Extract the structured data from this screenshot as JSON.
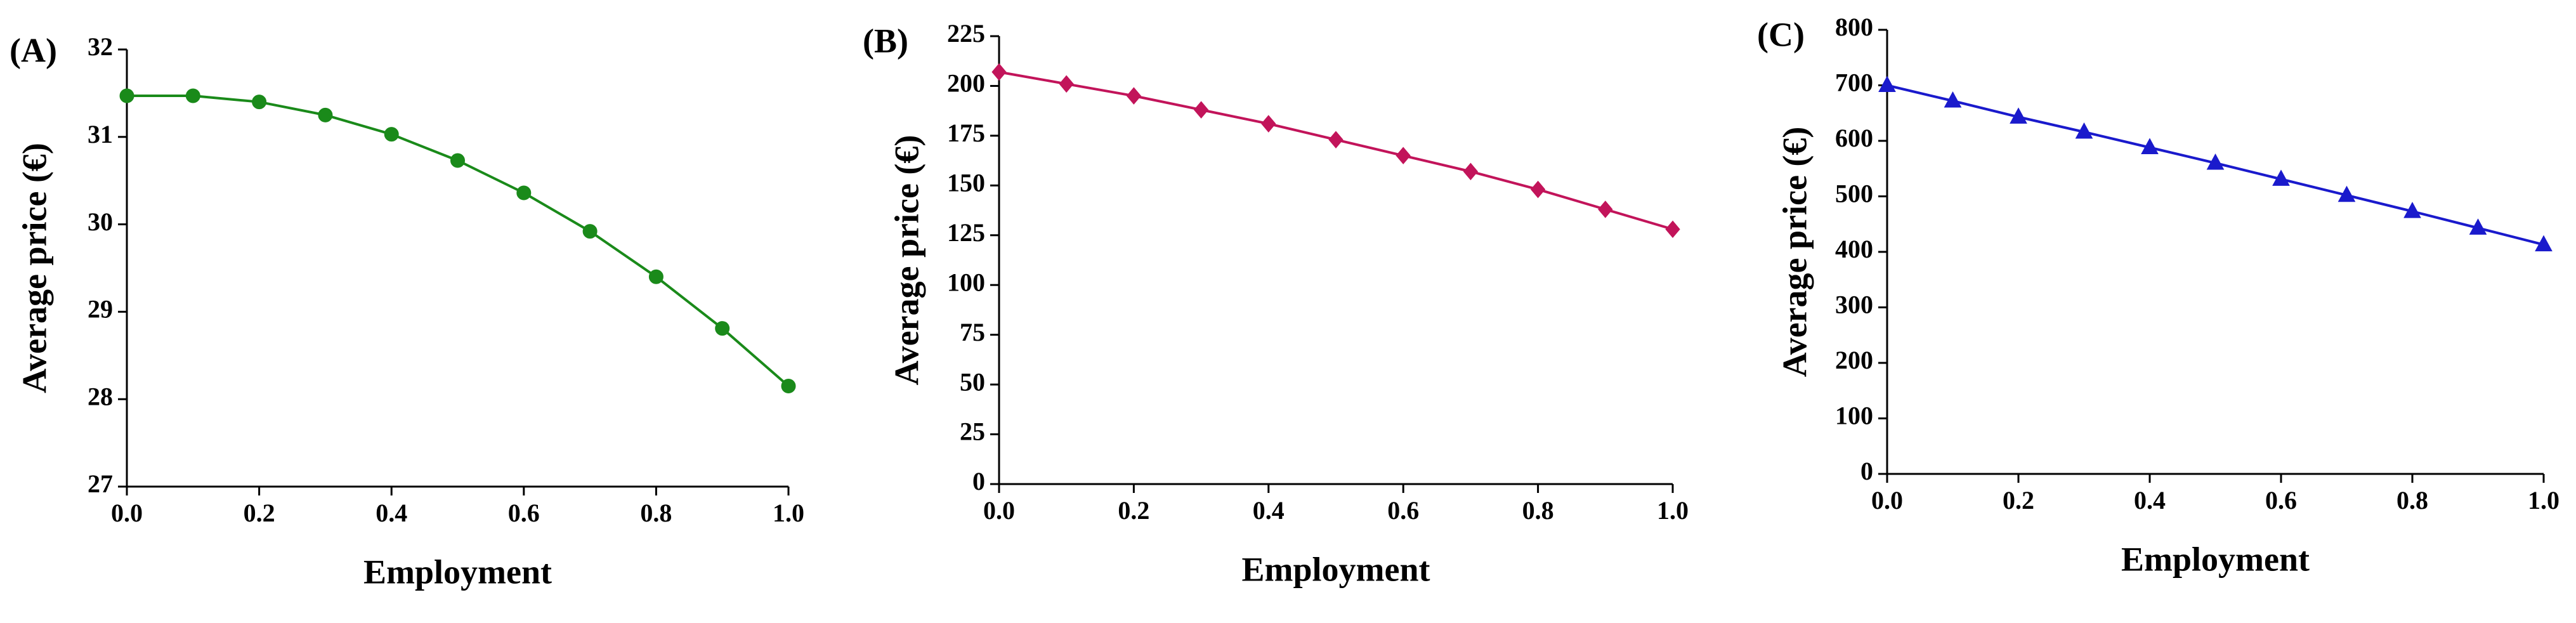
{
  "chart_data": [
    {
      "type": "line",
      "title": "(A)",
      "xlabel": "Employment",
      "ylabel": "Average price (€)",
      "x": [
        0,
        0.1,
        0.2,
        0.3,
        0.4,
        0.5,
        0.6,
        0.7,
        0.8,
        0.9,
        1
      ],
      "values": [
        31.47,
        31.47,
        31.4,
        31.25,
        31.03,
        30.73,
        30.36,
        29.92,
        29.4,
        28.81,
        28.15
      ],
      "color": "#1a8a1a",
      "marker": "circle",
      "xlim": [
        0,
        1
      ],
      "ylim": [
        27,
        32
      ],
      "xticks": [
        {
          "value": 0,
          "label": "0.0"
        },
        0.2,
        0.4,
        0.6,
        0.8,
        {
          "value": 1,
          "label": "1.0"
        }
      ],
      "yticks": [
        27,
        28,
        29,
        30,
        31,
        32
      ]
    },
    {
      "type": "line",
      "title": "(B)",
      "xlabel": "Employment",
      "ylabel": "Average price (€)",
      "x": [
        0,
        0.1,
        0.2,
        0.3,
        0.4,
        0.5,
        0.6,
        0.7,
        0.8,
        0.9,
        1
      ],
      "values": [
        207,
        201,
        195,
        188,
        181,
        173,
        165,
        157,
        148,
        138,
        128
      ],
      "color": "#c2145a",
      "marker": "diamond",
      "xlim": [
        0,
        1
      ],
      "ylim": [
        0,
        225
      ],
      "xticks": [
        {
          "value": 0,
          "label": "0.0"
        },
        0.2,
        0.4,
        0.6,
        0.8,
        {
          "value": 1,
          "label": "1.0"
        }
      ],
      "yticks": [
        0,
        25,
        50,
        75,
        100,
        125,
        150,
        175,
        200,
        225
      ]
    },
    {
      "type": "line",
      "title": "(C)",
      "xlabel": "Employment",
      "ylabel": "Average price (€)",
      "x": [
        0,
        0.1,
        0.2,
        0.3,
        0.4,
        0.5,
        0.6,
        0.7,
        0.8,
        0.9,
        1
      ],
      "values": [
        700,
        672,
        643,
        616,
        588,
        560,
        531,
        502,
        473,
        443,
        413
      ],
      "color": "#1a1acc",
      "marker": "triangle",
      "xlim": [
        0,
        1
      ],
      "ylim": [
        0,
        800
      ],
      "xticks": [
        {
          "value": 0,
          "label": "0.0"
        },
        0.2,
        0.4,
        0.6,
        0.8,
        {
          "value": 1,
          "label": "1.0"
        }
      ],
      "yticks": [
        0,
        100,
        200,
        300,
        400,
        500,
        600,
        700,
        800
      ]
    }
  ]
}
